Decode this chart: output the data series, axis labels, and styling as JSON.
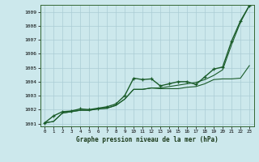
{
  "title": "Graphe pression niveau de la mer (hPa)",
  "bg_color": "#cce8ec",
  "grid_color": "#aaccd4",
  "line_color": "#1a5c2a",
  "marker_color": "#1a5c2a",
  "xlim": [
    -0.5,
    23.5
  ],
  "ylim": [
    1000.8,
    1009.5
  ],
  "xticks": [
    0,
    1,
    2,
    3,
    4,
    5,
    6,
    7,
    8,
    9,
    10,
    11,
    12,
    13,
    14,
    15,
    16,
    17,
    18,
    19,
    20,
    21,
    22,
    23
  ],
  "yticks": [
    1001,
    1002,
    1003,
    1004,
    1005,
    1006,
    1007,
    1008,
    1009
  ],
  "series": [
    {
      "x": [
        0,
        1,
        2,
        3,
        4,
        5,
        6,
        7,
        8,
        9,
        10,
        11,
        12,
        13,
        14,
        15,
        16,
        17,
        18,
        19,
        20,
        21,
        22,
        23
      ],
      "y": [
        1001.05,
        1001.55,
        1001.85,
        1001.9,
        1002.05,
        1002.0,
        1002.1,
        1002.2,
        1002.4,
        1003.0,
        1004.25,
        1004.15,
        1004.2,
        1003.7,
        1003.85,
        1004.0,
        1004.0,
        1003.8,
        1004.35,
        1004.9,
        1005.05,
        1006.9,
        1008.35,
        1009.45
      ],
      "marker": "+",
      "linewidth": 1.0
    },
    {
      "x": [
        0,
        1,
        2,
        3,
        4,
        5,
        6,
        7,
        8,
        9,
        10,
        11,
        12,
        13,
        14,
        15,
        16,
        17,
        18,
        19,
        20,
        21,
        22,
        23
      ],
      "y": [
        1001.05,
        1001.15,
        1001.75,
        1001.85,
        1001.95,
        1001.95,
        1002.05,
        1002.1,
        1002.3,
        1002.75,
        1003.45,
        1003.45,
        1003.55,
        1003.5,
        1003.5,
        1003.5,
        1003.6,
        1003.65,
        1003.85,
        1004.15,
        1004.2,
        1004.2,
        1004.25,
        1005.15
      ],
      "marker": null,
      "linewidth": 0.8
    },
    {
      "x": [
        0,
        1,
        2,
        3,
        4,
        5,
        6,
        7,
        8,
        9,
        10,
        11,
        12,
        13,
        14,
        15,
        16,
        17,
        18,
        19,
        20,
        21,
        22,
        23
      ],
      "y": [
        1001.05,
        1001.15,
        1001.75,
        1001.85,
        1001.95,
        1001.95,
        1002.05,
        1002.1,
        1002.3,
        1002.75,
        1003.45,
        1003.45,
        1003.55,
        1003.55,
        1003.65,
        1003.75,
        1003.85,
        1003.95,
        1004.15,
        1004.45,
        1004.85,
        1006.65,
        1008.25,
        1009.45
      ],
      "marker": null,
      "linewidth": 0.8
    }
  ]
}
